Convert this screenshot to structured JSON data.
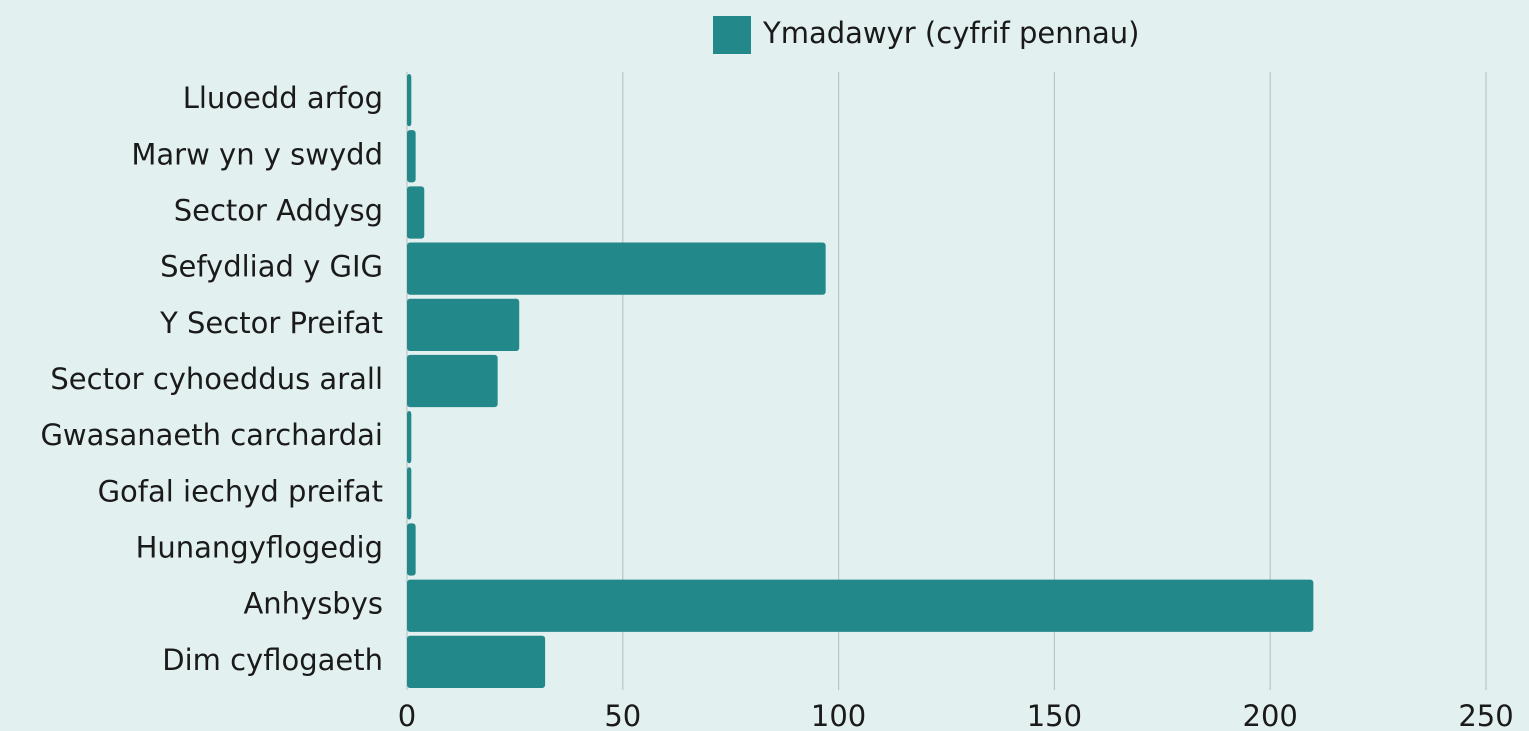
{
  "chart_data": {
    "type": "bar",
    "orientation": "horizontal",
    "categories": [
      "Lluoedd arfog",
      "Marw yn y swydd",
      "Sector Addysg",
      "Sefydliad y GIG",
      "Y Sector Preifat",
      "Sector cyhoeddus arall",
      "Gwasanaeth carchardai",
      "Gofal iechyd preifat",
      "Hunangyflogedig",
      "Anhysbys",
      "Dim cyflogaeth"
    ],
    "series": [
      {
        "name": "Ymadawyr (cyfrif pennau)",
        "color": "#23888a",
        "values": [
          1,
          2,
          4,
          97,
          26,
          21,
          1,
          1,
          2,
          210,
          32
        ]
      }
    ],
    "xlim": [
      0,
      250
    ],
    "xticks": [
      0,
      50,
      100,
      150,
      200,
      250
    ],
    "grid": true,
    "legend": "top"
  }
}
